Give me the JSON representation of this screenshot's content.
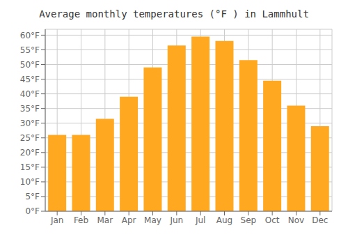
{
  "chart_data": {
    "type": "bar",
    "title": "Average monthly temperatures (°F ) in Lammhult",
    "categories": [
      "Jan",
      "Feb",
      "Mar",
      "Apr",
      "May",
      "Jun",
      "Jul",
      "Aug",
      "Sep",
      "Oct",
      "Nov",
      "Dec"
    ],
    "values": [
      26,
      26,
      31.5,
      39,
      49,
      56.5,
      59.5,
      58,
      51.5,
      44.5,
      36,
      29
    ],
    "color": "#FFA820",
    "ylim": [
      0,
      62
    ],
    "yticks": [
      {
        "value": 0,
        "label": "0°F"
      },
      {
        "value": 5,
        "label": "5°F"
      },
      {
        "value": 10,
        "label": "10°F"
      },
      {
        "value": 15,
        "label": "15°F"
      },
      {
        "value": 20,
        "label": "20°F"
      },
      {
        "value": 25,
        "label": "25°F"
      },
      {
        "value": 30,
        "label": "30°F"
      },
      {
        "value": 35,
        "label": "35°F"
      },
      {
        "value": 40,
        "label": "40°F"
      },
      {
        "value": 45,
        "label": "45°F"
      },
      {
        "value": 50,
        "label": "50°F"
      },
      {
        "value": 55,
        "label": "55°F"
      },
      {
        "value": 60,
        "label": "60°F"
      }
    ],
    "grid": true
  }
}
